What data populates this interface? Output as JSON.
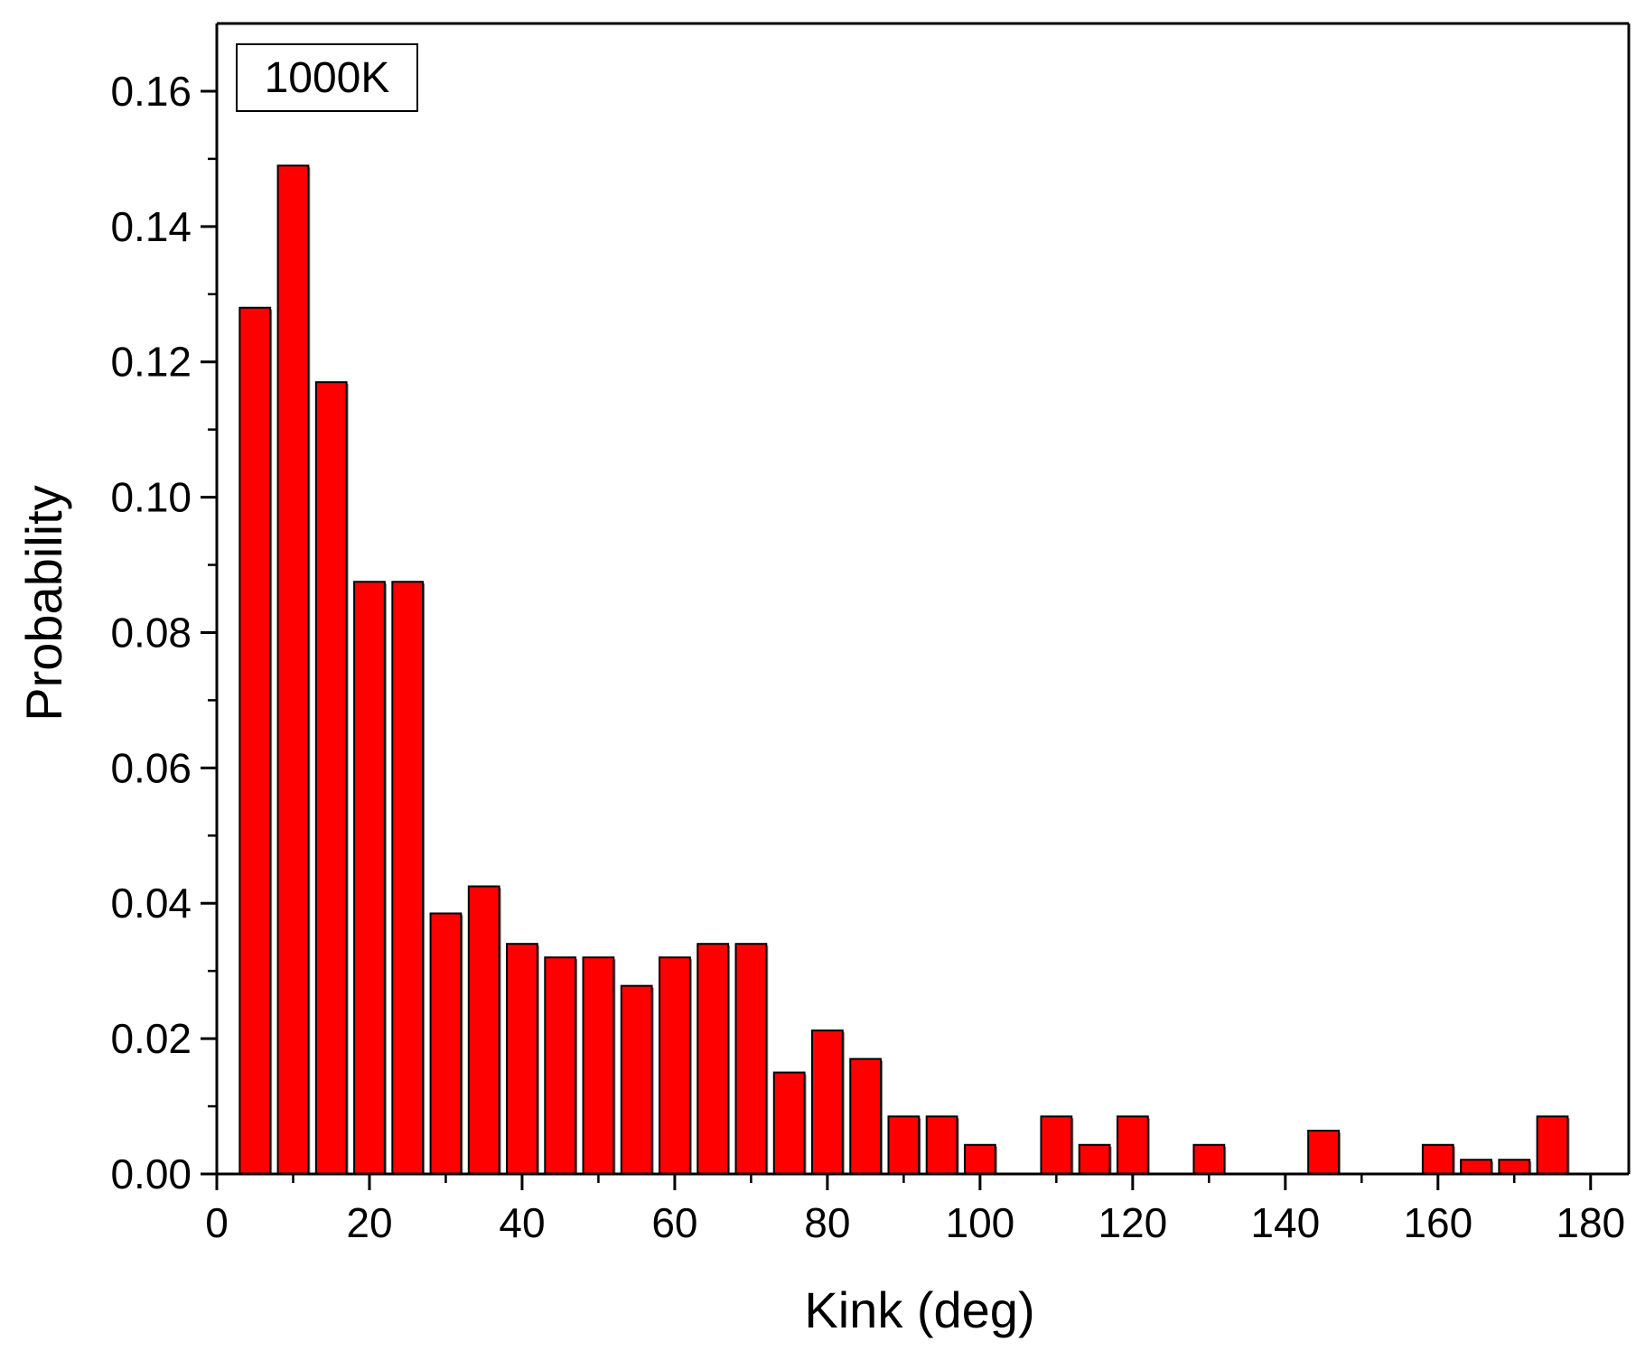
{
  "chart_data": {
    "type": "bar",
    "title": "",
    "annotation": "1000K",
    "xlabel": "Kink (deg)",
    "ylabel": "Probability",
    "xlim": [
      0,
      185
    ],
    "ylim": [
      0,
      0.17
    ],
    "xticks": [
      0,
      20,
      40,
      60,
      80,
      100,
      120,
      140,
      160,
      180
    ],
    "yticks": [
      0.0,
      0.02,
      0.04,
      0.06,
      0.08,
      0.1,
      0.12,
      0.14,
      0.16
    ],
    "bar_width": 4,
    "bar_color": "#ff0000",
    "edge_color": "#000000",
    "x": [
      5,
      10,
      15,
      20,
      25,
      30,
      35,
      40,
      45,
      50,
      55,
      60,
      65,
      70,
      75,
      80,
      85,
      90,
      95,
      100,
      105,
      110,
      115,
      120,
      125,
      130,
      135,
      140,
      145,
      150,
      155,
      160,
      165,
      170,
      175
    ],
    "values": [
      0.128,
      0.149,
      0.117,
      0.0875,
      0.0875,
      0.0385,
      0.0425,
      0.034,
      0.032,
      0.032,
      0.0278,
      0.032,
      0.034,
      0.034,
      0.015,
      0.0212,
      0.017,
      0.0085,
      0.0085,
      0.0043,
      0,
      0.0085,
      0.0043,
      0.0085,
      0,
      0.0043,
      0,
      0,
      0.0064,
      0,
      0,
      0.0043,
      0.0021,
      0.0021,
      0.0085
    ],
    "grid": false,
    "legend": "none"
  }
}
